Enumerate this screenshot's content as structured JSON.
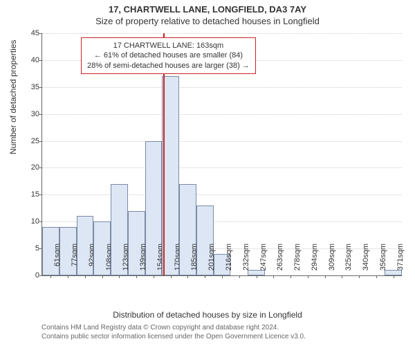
{
  "titles": {
    "main": "17, CHARTWELL LANE, LONGFIELD, DA3 7AY",
    "sub": "Size of property relative to detached houses in Longfield"
  },
  "axes": {
    "ylabel": "Number of detached properties",
    "xlabel": "Distribution of detached houses by size in Longfield",
    "ylim": [
      0,
      45
    ],
    "yticks": [
      0,
      5,
      10,
      15,
      20,
      25,
      30,
      35,
      40,
      45
    ],
    "xtick_labels": [
      "61sqm",
      "77sqm",
      "92sqm",
      "108sqm",
      "123sqm",
      "139sqm",
      "154sqm",
      "170sqm",
      "185sqm",
      "201sqm",
      "216sqm",
      "232sqm",
      "247sqm",
      "263sqm",
      "278sqm",
      "294sqm",
      "309sqm",
      "325sqm",
      "340sqm",
      "356sqm",
      "371sqm"
    ],
    "grid_color": "#cccccc",
    "tick_fontsize": 11,
    "label_fontsize": 12
  },
  "histogram": {
    "type": "histogram",
    "values": [
      9,
      9,
      11,
      10,
      17,
      12,
      25,
      37,
      17,
      13,
      4,
      0,
      1,
      0,
      0,
      0,
      0,
      0,
      0,
      0,
      1
    ],
    "bar_fill": "#dde6f4",
    "bar_border": "#7a8aa6",
    "bar_width_ratio": 1.0
  },
  "marker": {
    "value_sqm": 163,
    "line_color": "#cc2222",
    "box_border": "#cc2222",
    "lines": [
      "17 CHARTWELL LANE: 163sqm",
      "← 61% of detached houses are smaller (84)",
      "28% of semi-detached houses are larger (38) →"
    ]
  },
  "footer": {
    "line1": "Contains HM Land Registry data © Crown copyright and database right 2024.",
    "line2": "Contains public sector information licensed under the Open Government Licence v3.0."
  },
  "colors": {
    "background": "#ffffff",
    "text": "#333333",
    "axis": "#666666"
  }
}
